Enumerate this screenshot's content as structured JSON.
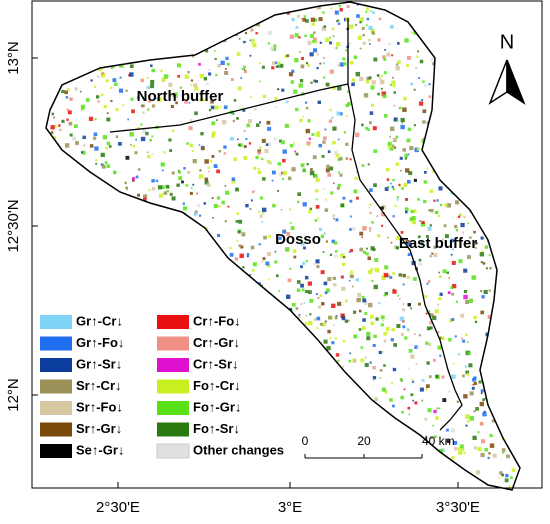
{
  "map": {
    "north_arrow": "N",
    "regions": [
      {
        "label": "North buffer"
      },
      {
        "label": "Dosso"
      },
      {
        "label": "East buffer"
      }
    ],
    "lat_ticks": [
      "13°N",
      "12°30'N",
      "12°N"
    ],
    "lon_ticks": [
      "2°30'E",
      "3°E",
      "3°30'E"
    ],
    "legend": [
      {
        "label": "Gr↑-Cr↓",
        "color": "#7fd3f5"
      },
      {
        "label": "Gr↑-Fo↓",
        "color": "#1f6ff0"
      },
      {
        "label": "Gr↑-Sr↓",
        "color": "#0b3d9e"
      },
      {
        "label": "Sr↑-Cr↓",
        "color": "#9b9158"
      },
      {
        "label": "Sr↑-Fo↓",
        "color": "#d7c6a2"
      },
      {
        "label": "Sr↑-Gr↓",
        "color": "#7a4a0b"
      },
      {
        "label": "Se↑-Gr↓",
        "color": "#000000"
      },
      {
        "label": "Cr↑-Fo↓",
        "color": "#e81010"
      },
      {
        "label": "Cr↑-Gr↓",
        "color": "#f08f84"
      },
      {
        "label": "Cr↑-Sr↓",
        "color": "#e010d0"
      },
      {
        "label": "Fo↑-Cr↓",
        "color": "#c8f020"
      },
      {
        "label": "Fo↑-Gr↓",
        "color": "#58e018"
      },
      {
        "label": "Fo↑-Sr↓",
        "color": "#2a7a10"
      },
      {
        "label": "Other changes",
        "color": "#e0e0e0"
      }
    ],
    "scale_bar": [
      "0",
      "20",
      "40 km"
    ]
  }
}
